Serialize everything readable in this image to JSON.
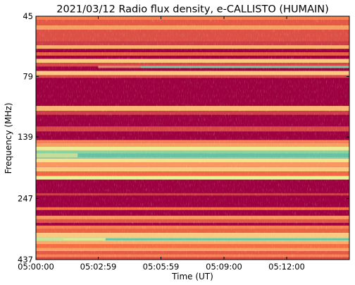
{
  "chart_data": {
    "type": "heatmap",
    "title": "2021/03/12  Radio flux density, e-CALLISTO (HUMAIN)",
    "xlabel": "Time (UT)",
    "ylabel": "Frequency (MHz)",
    "x_ticks": [
      "05:00:00",
      "05:02:59",
      "05:05:59",
      "05:09:00",
      "05:12:00"
    ],
    "x_tick_seconds": [
      0,
      179,
      359,
      540,
      720
    ],
    "x_range_seconds": [
      0,
      900
    ],
    "y_ticks": [
      "45",
      "79",
      "139",
      "247",
      "437"
    ],
    "y_tick_values": [
      45,
      79,
      139,
      247,
      437
    ],
    "y_range": [
      45,
      437
    ],
    "y_scale": "log",
    "colormap": "Spectral_r",
    "colors": {
      "background": "#9e0142",
      "low": "#c2304a",
      "mid": "#f46d43",
      "high": "#fdd588",
      "peak": "#e6f598",
      "burst": "#66c2a5"
    },
    "bands": [
      {
        "f0": 45,
        "f1": 46.5,
        "level": 0.55
      },
      {
        "f0": 46.5,
        "f1": 49,
        "level": 0.42
      },
      {
        "f0": 49,
        "f1": 51,
        "level": 0.62
      },
      {
        "f0": 51,
        "f1": 57,
        "level": 0.38
      },
      {
        "f0": 57,
        "f1": 59,
        "level": 0.3
      },
      {
        "f0": 59,
        "f1": 61,
        "level": 0.66
      },
      {
        "f0": 63,
        "f1": 65,
        "level": 0.45
      },
      {
        "f0": 67,
        "f1": 69.5,
        "level": 0.72
      },
      {
        "f0": 69.5,
        "f1": 72,
        "level": 0.35
      },
      {
        "f0": 75,
        "f1": 78,
        "level": 0.72
      },
      {
        "f0": 78,
        "f1": 80,
        "level": 0.35
      },
      {
        "f0": 104,
        "f1": 109,
        "level": 0.68
      },
      {
        "f0": 109,
        "f1": 113,
        "level": 0.3
      },
      {
        "f0": 126,
        "f1": 132,
        "level": 0.35
      },
      {
        "f0": 143,
        "f1": 147,
        "level": 0.55
      },
      {
        "f0": 147,
        "f1": 152,
        "level": 0.62
      },
      {
        "f0": 152,
        "f1": 158,
        "level": 0.85
      },
      {
        "f0": 158,
        "f1": 170,
        "level": 0.97
      },
      {
        "f0": 170,
        "f1": 176,
        "level": 0.82
      },
      {
        "f0": 176,
        "f1": 184,
        "level": 0.6
      },
      {
        "f0": 184,
        "f1": 192,
        "level": 0.72
      },
      {
        "f0": 192,
        "f1": 200,
        "level": 0.48
      },
      {
        "f0": 200,
        "f1": 207,
        "level": 0.88
      },
      {
        "f0": 235,
        "f1": 240,
        "level": 0.3
      },
      {
        "f0": 268,
        "f1": 275,
        "level": 0.5
      },
      {
        "f0": 290,
        "f1": 300,
        "level": 0.6
      },
      {
        "f0": 300,
        "f1": 310,
        "level": 0.4
      },
      {
        "f0": 318,
        "f1": 328,
        "level": 0.55
      },
      {
        "f0": 328,
        "f1": 340,
        "level": 0.45
      },
      {
        "f0": 340,
        "f1": 355,
        "level": 0.72
      },
      {
        "f0": 355,
        "f1": 368,
        "level": 0.93
      },
      {
        "f0": 368,
        "f1": 378,
        "level": 0.65
      },
      {
        "f0": 378,
        "f1": 392,
        "level": 0.5
      },
      {
        "f0": 392,
        "f1": 404,
        "level": 0.62
      },
      {
        "f0": 404,
        "f1": 416,
        "level": 0.42
      },
      {
        "f0": 416,
        "f1": 428,
        "level": 0.55
      },
      {
        "f0": 428,
        "f1": 437,
        "level": 0.35
      }
    ],
    "hot_lines": [
      {
        "f0": 71.5,
        "f1": 73,
        "t0": 300,
        "t1": 900,
        "level": 0.98
      },
      {
        "f0": 162,
        "f1": 168,
        "t0": 120,
        "t1": 900,
        "level": 1.0
      },
      {
        "f0": 358,
        "f1": 365,
        "t0": 200,
        "t1": 900,
        "level": 1.0
      }
    ]
  }
}
